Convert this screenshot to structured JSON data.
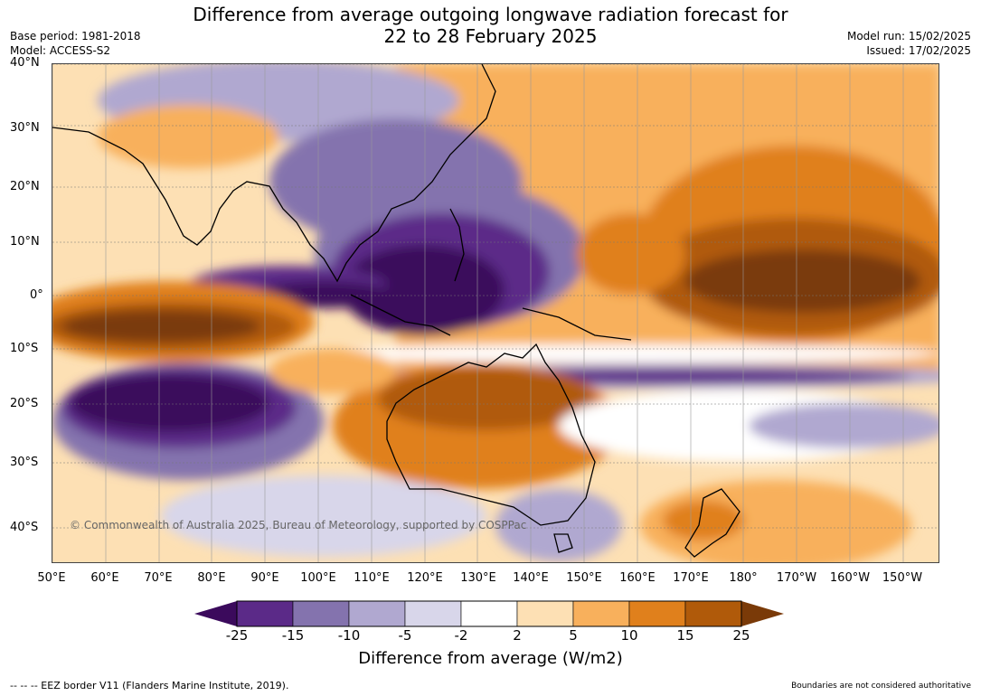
{
  "title_line1": "Difference from average outgoing longwave radiation forecast for",
  "title_line2": "22 to 28 February 2025",
  "base_period": "Base period: 1981-2018",
  "model": "Model: ACCESS-S2",
  "model_run": "Model run: 15/02/2025",
  "issued": "Issued: 17/02/2025",
  "lat_labels": [
    "40°N",
    "30°N",
    "20°N",
    "10°N",
    "0°",
    "10°S",
    "20°S",
    "30°S",
    "40°S"
  ],
  "lon_labels": [
    "50°E",
    "60°E",
    "70°E",
    "80°E",
    "90°E",
    "100°E",
    "110°E",
    "120°E",
    "130°E",
    "140°E",
    "150°E",
    "160°E",
    "170°E",
    "180°",
    "170°W",
    "160°W",
    "150°W"
  ],
  "copyright": "© Commonwealth of Australia 2025, Bureau of Meteorology, supported by COSPPac",
  "colorbar": {
    "labels": [
      "-25",
      "-15",
      "-10",
      "-5",
      "-2",
      "2",
      "5",
      "10",
      "15",
      "25"
    ],
    "colors": [
      "#3b0a5c",
      "#5b2a88",
      "#8473ae",
      "#b0a8d0",
      "#d8d6ea",
      "#ffffff",
      "#fde0b4",
      "#f8b05c",
      "#e0801c",
      "#b05a0a",
      "#7a3a08"
    ],
    "title": "Difference from average (W/m2)"
  },
  "footer_left": "--  --  -- EEZ border V11 (Flanders Marine Institute, 2019).",
  "footer_right": "Boundaries are not considered authoritative"
}
